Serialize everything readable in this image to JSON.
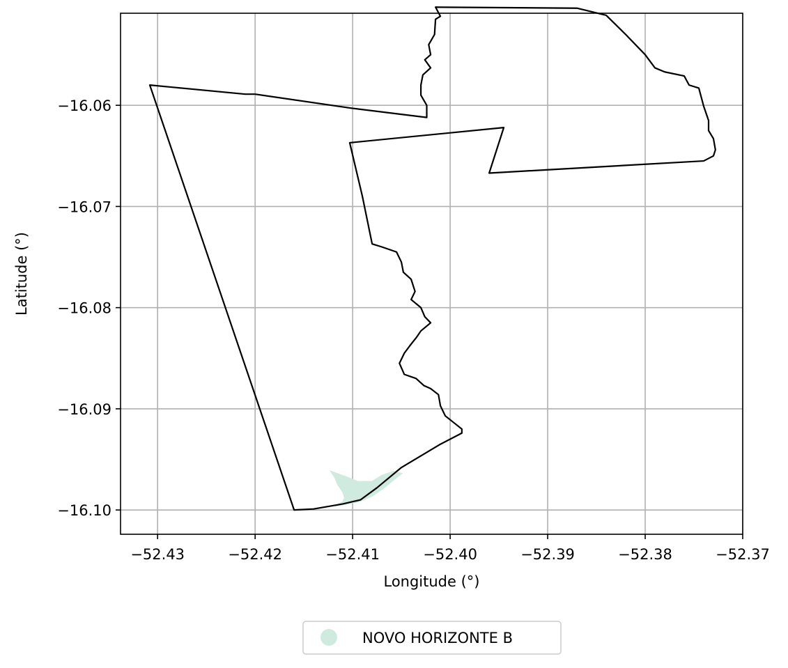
{
  "chart_data": {
    "type": "map",
    "xlabel": "Longitude (°)",
    "ylabel": "Latitude (°)",
    "xlim": [
      -52.4338,
      -52.37
    ],
    "ylim": [
      -16.1024,
      -16.0509
    ],
    "xticks": [
      -52.43,
      -52.42,
      -52.41,
      -52.4,
      -52.39,
      -52.38,
      -52.37
    ],
    "xtick_labels": [
      "−52.43",
      "−52.42",
      "−52.41",
      "−52.40",
      "−52.39",
      "−52.38",
      "−52.37"
    ],
    "yticks": [
      -16.06,
      -16.07,
      -16.08,
      -16.09,
      -16.1
    ],
    "ytick_labels": [
      "−16.06",
      "−16.07",
      "−16.08",
      "−16.09",
      "−16.10"
    ],
    "grid": true,
    "legend_position": "bottom-center-outside",
    "legend": [
      {
        "label": "NOVO HORIZONTE B",
        "color": "#cfeadf",
        "marker": "circle"
      }
    ],
    "boundary": {
      "stroke": "#000000",
      "fill": "none",
      "coordinates": [
        [
          -52.4308,
          -16.058
        ],
        [
          -52.421,
          -16.0589
        ],
        [
          -52.42,
          -16.0589
        ],
        [
          -52.41,
          -16.0603
        ],
        [
          -52.4024,
          -16.0612
        ],
        [
          -52.4024,
          -16.06
        ],
        [
          -52.403,
          -16.059
        ],
        [
          -52.403,
          -16.058
        ],
        [
          -52.4028,
          -16.057
        ],
        [
          -52.402,
          -16.0563
        ],
        [
          -52.4026,
          -16.0555
        ],
        [
          -52.402,
          -16.055
        ],
        [
          -52.4022,
          -16.054
        ],
        [
          -52.4016,
          -16.053
        ],
        [
          -52.4015,
          -16.0515
        ],
        [
          -52.401,
          -16.0512
        ],
        [
          -52.4015,
          -16.0503
        ],
        [
          -52.387,
          -16.0504
        ],
        [
          -52.384,
          -16.0511
        ],
        [
          -52.382,
          -16.053
        ],
        [
          -52.38,
          -16.055
        ],
        [
          -52.379,
          -16.0563
        ],
        [
          -52.378,
          -16.0567
        ],
        [
          -52.376,
          -16.0571
        ],
        [
          -52.3755,
          -16.058
        ],
        [
          -52.3745,
          -16.0583
        ],
        [
          -52.374,
          -16.0601
        ],
        [
          -52.3735,
          -16.0615
        ],
        [
          -52.3735,
          -16.0625
        ],
        [
          -52.373,
          -16.0633
        ],
        [
          -52.3728,
          -16.0644
        ],
        [
          -52.373,
          -16.065
        ],
        [
          -52.374,
          -16.0655
        ],
        [
          -52.396,
          -16.0667
        ],
        [
          -52.3945,
          -16.0622
        ],
        [
          -52.4103,
          -16.0637
        ],
        [
          -52.409,
          -16.069
        ],
        [
          -52.408,
          -16.0737
        ],
        [
          -52.407,
          -16.074
        ],
        [
          -52.4055,
          -16.0745
        ],
        [
          -52.405,
          -16.0755
        ],
        [
          -52.4048,
          -16.0765
        ],
        [
          -52.404,
          -16.0772
        ],
        [
          -52.4036,
          -16.0784
        ],
        [
          -52.404,
          -16.0792
        ],
        [
          -52.403,
          -16.08
        ],
        [
          -52.4026,
          -16.0809
        ],
        [
          -52.402,
          -16.0815
        ],
        [
          -52.403,
          -16.0823
        ],
        [
          -52.4035,
          -16.083
        ],
        [
          -52.404,
          -16.0836
        ],
        [
          -52.4047,
          -16.0845
        ],
        [
          -52.4052,
          -16.0855
        ],
        [
          -52.4047,
          -16.0866
        ],
        [
          -52.4035,
          -16.087
        ],
        [
          -52.4027,
          -16.0877
        ],
        [
          -52.402,
          -16.088
        ],
        [
          -52.4012,
          -16.0886
        ],
        [
          -52.401,
          -16.0897
        ],
        [
          -52.4005,
          -16.0907
        ],
        [
          -52.3988,
          -16.092
        ],
        [
          -52.3988,
          -16.0924
        ],
        [
          -52.401,
          -16.0935
        ],
        [
          -52.405,
          -16.0958
        ],
        [
          -52.4075,
          -16.0978
        ],
        [
          -52.4092,
          -16.099
        ],
        [
          -52.411,
          -16.0994
        ],
        [
          -52.414,
          -16.0999
        ],
        [
          -52.416,
          -16.1
        ],
        [
          -52.4308,
          -16.058
        ]
      ]
    },
    "regions": [
      {
        "name": "NOVO HORIZONTE B",
        "color": "#cfeadf",
        "coordinates": [
          [
            -52.4122,
            -16.0962
          ],
          [
            -52.4118,
            -16.0968
          ],
          [
            -52.4115,
            -16.0975
          ],
          [
            -52.411,
            -16.0982
          ],
          [
            -52.4108,
            -16.0988
          ],
          [
            -52.411,
            -16.0992
          ],
          [
            -52.4118,
            -16.0996
          ],
          [
            -52.4095,
            -16.0992
          ],
          [
            -52.408,
            -16.0986
          ],
          [
            -52.4068,
            -16.0978
          ],
          [
            -52.4058,
            -16.097
          ],
          [
            -52.405,
            -16.0964
          ],
          [
            -52.4058,
            -16.0962
          ],
          [
            -52.407,
            -16.0966
          ],
          [
            -52.408,
            -16.0972
          ],
          [
            -52.4095,
            -16.0972
          ],
          [
            -52.4105,
            -16.0968
          ],
          [
            -52.4122,
            -16.0962
          ]
        ]
      }
    ]
  }
}
